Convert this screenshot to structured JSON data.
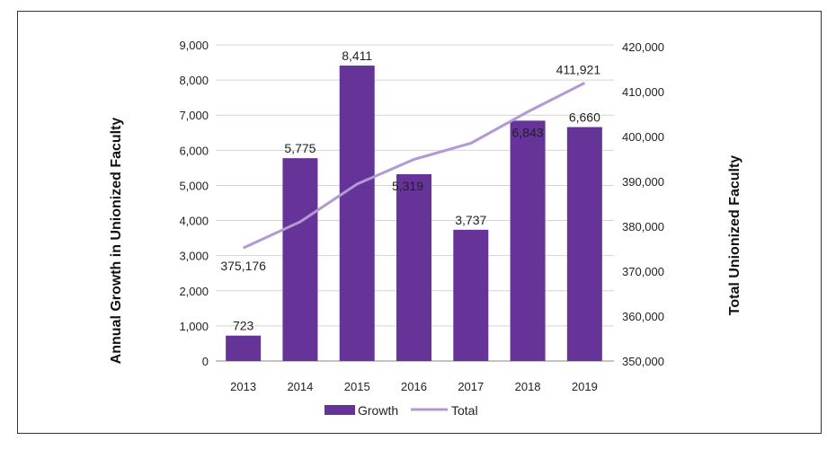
{
  "chart_data": {
    "type": "bar",
    "categories": [
      "2013",
      "2014",
      "2015",
      "2016",
      "2017",
      "2018",
      "2019"
    ],
    "series": [
      {
        "name": "Growth",
        "type": "bar",
        "axis": "left",
        "values": [
          723,
          5775,
          8411,
          5319,
          3737,
          6843,
          6660
        ],
        "labels": [
          "723",
          "5,775",
          "8,411",
          "5,319",
          "3,737",
          "6,843",
          "6,660"
        ],
        "color": "#663399"
      },
      {
        "name": "Total",
        "type": "line",
        "axis": "right",
        "values": [
          375176,
          381000,
          389400,
          394900,
          398500,
          405500,
          411921
        ],
        "point_labels": [
          {
            "index": 0,
            "text": "375,176"
          },
          {
            "index": 6,
            "text": "411,921"
          }
        ],
        "color": "#b399d4"
      }
    ],
    "ylabel": "Annual Growth in Unionized Faculty",
    "y2label": "Total Unionized Faculty",
    "ylim": [
      0,
      9000
    ],
    "y2lim": [
      350000,
      420000
    ],
    "yticks": [
      "0",
      "1,000",
      "2,000",
      "3,000",
      "4,000",
      "5,000",
      "6,000",
      "7,000",
      "8,000",
      "9,000"
    ],
    "y2ticks": [
      "350,000",
      "360,000",
      "370,000",
      "380,000",
      "390,000",
      "400,000",
      "410,000",
      "420,000"
    ],
    "grid": true,
    "legend": "bottom"
  }
}
